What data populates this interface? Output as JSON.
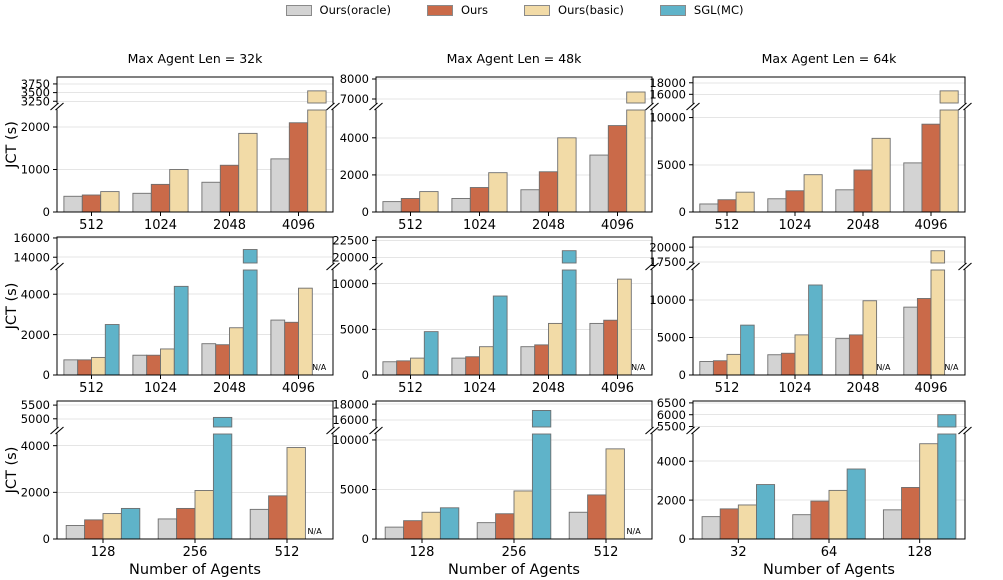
{
  "ylabel": "JCT (s)",
  "xlabel": "Number of Agents",
  "na_label": "N/A",
  "colors": {
    "Ours(oracle)": "#d3d3d3",
    "Ours": "#ca6a49",
    "Ours(basic)": "#f2dba7",
    "SGL(MC)": "#5fb3c9",
    "bar_edge": "#6e6e6e",
    "grid": "#e5e5e5",
    "frame": "#000000",
    "na_text": "#3fa8c4"
  },
  "legend": {
    "items": [
      {
        "label": "Ours(oracle)"
      },
      {
        "label": "Ours"
      },
      {
        "label": "Ours(basic)"
      },
      {
        "label": "SGL(MC)"
      }
    ]
  },
  "chart_data": [
    {
      "type": "bar",
      "row": 0,
      "col": 0,
      "title": "Max Agent Len = 32k",
      "categories": [
        "512",
        "1024",
        "2048",
        "4096"
      ],
      "series": [
        {
          "name": "Ours(oracle)",
          "values": [
            370,
            440,
            700,
            1250
          ]
        },
        {
          "name": "Ours",
          "values": [
            400,
            650,
            1100,
            2100
          ]
        },
        {
          "name": "Ours(basic)",
          "values": [
            480,
            1000,
            1850,
            3550
          ]
        }
      ],
      "broken_y_axis": {
        "lower_ticks": [
          0,
          1000,
          2000
        ],
        "lower_max": 2400,
        "upper_ticks": [
          3250,
          3500,
          3750
        ],
        "upper_min": 3200,
        "upper_max": 3950
      }
    },
    {
      "type": "bar",
      "row": 0,
      "col": 1,
      "title": "Max Agent Len = 48k",
      "categories": [
        "512",
        "1024",
        "2048",
        "4096"
      ],
      "series": [
        {
          "name": "Ours(oracle)",
          "values": [
            560,
            730,
            1200,
            3070
          ]
        },
        {
          "name": "Ours",
          "values": [
            730,
            1320,
            2170,
            4660
          ]
        },
        {
          "name": "Ours(basic)",
          "values": [
            1100,
            2120,
            4000,
            7350
          ]
        }
      ],
      "broken_y_axis": {
        "lower_ticks": [
          0,
          2000,
          4000
        ],
        "lower_max": 5500,
        "upper_ticks": [
          7000,
          8000
        ],
        "upper_min": 6800,
        "upper_max": 8100
      }
    },
    {
      "type": "bar",
      "row": 0,
      "col": 2,
      "title": "Max Agent Len = 64k",
      "categories": [
        "512",
        "1024",
        "2048",
        "4096"
      ],
      "series": [
        {
          "name": "Ours(oracle)",
          "values": [
            850,
            1400,
            2350,
            5200
          ]
        },
        {
          "name": "Ours",
          "values": [
            1300,
            2250,
            4450,
            9300
          ]
        },
        {
          "name": "Ours(basic)",
          "values": [
            2100,
            3950,
            7800,
            16600
          ]
        }
      ],
      "broken_y_axis": {
        "lower_ticks": [
          0,
          5000,
          10000
        ],
        "lower_max": 10800,
        "upper_ticks": [
          16000,
          18000
        ],
        "upper_min": 14500,
        "upper_max": 19000
      }
    },
    {
      "type": "bar",
      "row": 1,
      "col": 0,
      "title": "",
      "categories": [
        "512",
        "1024",
        "2048",
        "4096"
      ],
      "series": [
        {
          "name": "Ours(oracle)",
          "values": [
            750,
            980,
            1550,
            2720
          ]
        },
        {
          "name": "Ours",
          "values": [
            750,
            980,
            1500,
            2610
          ]
        },
        {
          "name": "Ours(basic)",
          "values": [
            870,
            1290,
            2340,
            4300
          ]
        },
        {
          "name": "SGL(MC)",
          "values": [
            2500,
            4390,
            14800,
            null
          ]
        }
      ],
      "broken_y_axis": {
        "lower_ticks": [
          0,
          2000,
          4000
        ],
        "lower_max": 5200,
        "upper_ticks": [
          14000,
          16000
        ],
        "upper_min": 13400,
        "upper_max": 16100
      }
    },
    {
      "type": "bar",
      "row": 1,
      "col": 1,
      "title": "",
      "categories": [
        "512",
        "1024",
        "2048",
        "4096"
      ],
      "series": [
        {
          "name": "Ours(oracle)",
          "values": [
            1450,
            1850,
            3100,
            5650
          ]
        },
        {
          "name": "Ours",
          "values": [
            1550,
            2000,
            3300,
            6000
          ]
        },
        {
          "name": "Ours(basic)",
          "values": [
            1850,
            3100,
            5650,
            10500
          ]
        },
        {
          "name": "SGL(MC)",
          "values": [
            4750,
            8650,
            21000,
            null
          ]
        }
      ],
      "broken_y_axis": {
        "lower_ticks": [
          0,
          5000,
          10000
        ],
        "lower_max": 11500,
        "upper_ticks": [
          20000,
          22500
        ],
        "upper_min": 19200,
        "upper_max": 23000
      }
    },
    {
      "type": "bar",
      "row": 1,
      "col": 2,
      "title": "",
      "categories": [
        "512",
        "1024",
        "2048",
        "4096"
      ],
      "series": [
        {
          "name": "Ours(oracle)",
          "values": [
            1800,
            2700,
            4850,
            9050
          ]
        },
        {
          "name": "Ours",
          "values": [
            1900,
            2900,
            5350,
            10200
          ]
        },
        {
          "name": "Ours(basic)",
          "values": [
            2750,
            5350,
            9900,
            19400
          ]
        },
        {
          "name": "SGL(MC)",
          "values": [
            6650,
            12000,
            null,
            null
          ]
        }
      ],
      "broken_y_axis": {
        "lower_ticks": [
          0,
          5000,
          10000
        ],
        "lower_max": 14000,
        "upper_ticks": [
          17500,
          20000
        ],
        "upper_min": 17350,
        "upper_max": 21700
      }
    },
    {
      "type": "bar",
      "row": 2,
      "col": 0,
      "title": "",
      "categories": [
        "128",
        "256",
        "512"
      ],
      "series": [
        {
          "name": "Ours(oracle)",
          "values": [
            580,
            860,
            1270
          ]
        },
        {
          "name": "Ours",
          "values": [
            820,
            1310,
            1850
          ]
        },
        {
          "name": "Ours(basic)",
          "values": [
            1090,
            2080,
            3920
          ]
        },
        {
          "name": "SGL(MC)",
          "values": [
            1310,
            5050,
            null
          ]
        }
      ],
      "broken_y_axis": {
        "lower_ticks": [
          0,
          2000,
          4000
        ],
        "lower_max": 4500,
        "upper_ticks": [
          5000,
          5500
        ],
        "upper_min": 4700,
        "upper_max": 5650
      }
    },
    {
      "type": "bar",
      "row": 2,
      "col": 1,
      "title": "",
      "categories": [
        "128",
        "256",
        "512"
      ],
      "series": [
        {
          "name": "Ours(oracle)",
          "values": [
            1200,
            1650,
            2700
          ]
        },
        {
          "name": "Ours",
          "values": [
            1850,
            2550,
            4450
          ]
        },
        {
          "name": "Ours(basic)",
          "values": [
            2700,
            4850,
            9100
          ]
        },
        {
          "name": "SGL(MC)",
          "values": [
            3150,
            17200,
            null
          ]
        }
      ],
      "broken_y_axis": {
        "lower_ticks": [
          0,
          5000,
          10000
        ],
        "lower_max": 10600,
        "upper_ticks": [
          16000,
          18000
        ],
        "upper_min": 15100,
        "upper_max": 18400
      }
    },
    {
      "type": "bar",
      "row": 2,
      "col": 2,
      "title": "",
      "categories": [
        "32",
        "64",
        "128"
      ],
      "series": [
        {
          "name": "Ours(oracle)",
          "values": [
            1150,
            1250,
            1500
          ]
        },
        {
          "name": "Ours",
          "values": [
            1550,
            1950,
            2650
          ]
        },
        {
          "name": "Ours(basic)",
          "values": [
            1750,
            2500,
            4900
          ]
        },
        {
          "name": "SGL(MC)",
          "values": [
            2800,
            3600,
            6000
          ]
        }
      ],
      "broken_y_axis": {
        "lower_ticks": [
          0,
          2000,
          4000
        ],
        "lower_max": 5400,
        "upper_ticks": [
          5500,
          6000,
          6500
        ],
        "upper_min": 5480,
        "upper_max": 6580
      }
    }
  ]
}
